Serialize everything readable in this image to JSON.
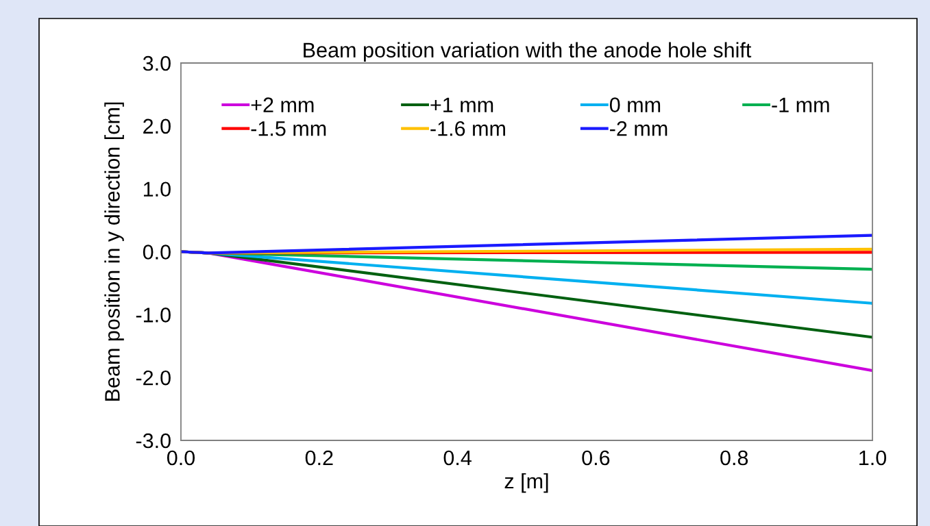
{
  "chart_data": {
    "type": "line",
    "title": "Beam position variation with the anode hole shift",
    "xlabel": "z [m]",
    "ylabel": "Beam position in y direction [cm]",
    "x": [
      0,
      0.04,
      1.0
    ],
    "series": [
      {
        "name": "+2 mm",
        "color": "#cc00dd",
        "values": [
          0,
          -0.02,
          -1.89
        ]
      },
      {
        "name": "+1 mm",
        "color": "#006010",
        "values": [
          0,
          -0.02,
          -1.36
        ]
      },
      {
        "name": "0 mm",
        "color": "#00b0f0",
        "values": [
          0,
          -0.02,
          -0.82
        ]
      },
      {
        "name": "-1 mm",
        "color": "#00b050",
        "values": [
          0,
          -0.02,
          -0.28
        ]
      },
      {
        "name": "-1.5 mm",
        "color": "#ff0000",
        "values": [
          0,
          -0.02,
          -0.01
        ]
      },
      {
        "name": "-1.6 mm",
        "color": "#ffc000",
        "values": [
          0,
          -0.02,
          0.04
        ]
      },
      {
        "name": "-2 mm",
        "color": "#1a1aff",
        "values": [
          0,
          -0.02,
          0.26
        ]
      }
    ],
    "xlim": [
      0,
      1.0
    ],
    "ylim": [
      -3.0,
      3.0
    ],
    "xticks": [
      {
        "value": 0,
        "label": "0.0"
      },
      0.2,
      0.4,
      0.6,
      0.8,
      {
        "value": 1.0,
        "label": "1.0"
      }
    ],
    "yticks": [
      {
        "value": -3,
        "label": "-3.0"
      },
      {
        "value": -2,
        "label": "-2.0"
      },
      {
        "value": -1,
        "label": "-1.0"
      },
      {
        "value": 0,
        "label": "0.0"
      },
      {
        "value": 1,
        "label": "1.0"
      },
      {
        "value": 2,
        "label": "2.0"
      },
      {
        "value": 3,
        "label": "3.0"
      }
    ],
    "grid": false,
    "legend": "top",
    "marker": "none",
    "line_style": "solid"
  }
}
